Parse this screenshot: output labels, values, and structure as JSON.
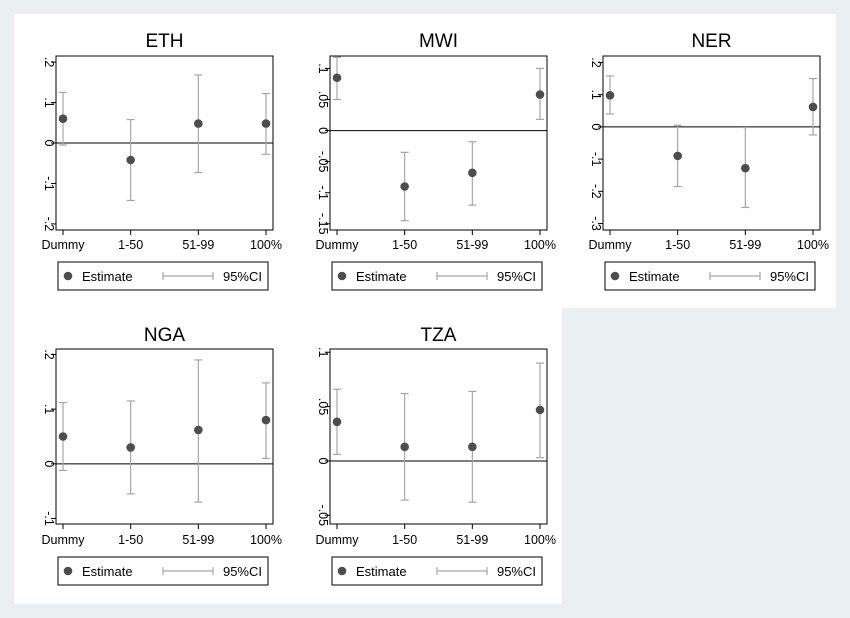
{
  "legend": {
    "estimate_label": "Estimate",
    "ci_label": "95%CI"
  },
  "colors": {
    "dot": "#4d4d4d",
    "ci": "#a6a6a6",
    "background": "#eaf0f2"
  },
  "chart_data": [
    {
      "type": "scatter",
      "title": "ETH",
      "categories": [
        "Dummy",
        "1-50",
        "51-99",
        "100%"
      ],
      "yticks": [
        {
          "v": 0.2,
          "label": ".2"
        },
        {
          "v": 0.1,
          "label": ".1"
        },
        {
          "v": 0,
          "label": "0"
        },
        {
          "v": -0.1,
          "label": "-.1"
        },
        {
          "v": -0.2,
          "label": "-.2"
        }
      ],
      "ylim": [
        -0.215,
        0.215
      ],
      "estimates": [
        0.06,
        -0.042,
        0.048,
        0.048
      ],
      "ci_low": [
        -0.005,
        -0.142,
        -0.073,
        -0.028
      ],
      "ci_high": [
        0.125,
        0.058,
        0.168,
        0.122
      ],
      "legend_position": "bottom"
    },
    {
      "type": "scatter",
      "title": "MWI",
      "categories": [
        "Dummy",
        "1-50",
        "51-99",
        "100%"
      ],
      "yticks": [
        {
          "v": 0.1,
          "label": ".1"
        },
        {
          "v": 0.05,
          "label": ".05"
        },
        {
          "v": 0,
          "label": "0"
        },
        {
          "v": -0.05,
          "label": "-.05"
        },
        {
          "v": -0.1,
          "label": "-.1"
        },
        {
          "v": -0.15,
          "label": "-.15"
        }
      ],
      "ylim": [
        -0.16,
        0.12
      ],
      "estimates": [
        0.085,
        -0.09,
        -0.068,
        0.058
      ],
      "ci_low": [
        0.05,
        -0.145,
        -0.12,
        0.018
      ],
      "ci_high": [
        0.118,
        -0.035,
        -0.018,
        0.1
      ],
      "legend_position": "bottom"
    },
    {
      "type": "scatter",
      "title": "NER",
      "categories": [
        "Dummy",
        "1-50",
        "51-99",
        "100%"
      ],
      "yticks": [
        {
          "v": 0.2,
          "label": ".2"
        },
        {
          "v": 0.1,
          "label": ".1"
        },
        {
          "v": 0,
          "label": "0"
        },
        {
          "v": -0.1,
          "label": "-.1"
        },
        {
          "v": -0.2,
          "label": "-.2"
        },
        {
          "v": -0.3,
          "label": "-.3"
        }
      ],
      "ylim": [
        -0.32,
        0.22
      ],
      "estimates": [
        0.098,
        -0.09,
        -0.128,
        0.062
      ],
      "ci_low": [
        0.04,
        -0.185,
        -0.25,
        -0.025
      ],
      "ci_high": [
        0.158,
        0.005,
        -0.002,
        0.15
      ],
      "legend_position": "bottom"
    },
    {
      "type": "scatter",
      "title": "NGA",
      "categories": [
        "Dummy",
        "1-50",
        "51-99",
        "100%"
      ],
      "yticks": [
        {
          "v": 0.2,
          "label": ".2"
        },
        {
          "v": 0.1,
          "label": ".1"
        },
        {
          "v": 0,
          "label": "0"
        },
        {
          "v": -0.1,
          "label": "-.1"
        }
      ],
      "ylim": [
        -0.11,
        0.21
      ],
      "estimates": [
        0.05,
        0.03,
        0.062,
        0.08
      ],
      "ci_low": [
        -0.012,
        -0.055,
        -0.07,
        0.01
      ],
      "ci_high": [
        0.112,
        0.115,
        0.19,
        0.148
      ],
      "legend_position": "bottom"
    },
    {
      "type": "scatter",
      "title": "TZA",
      "categories": [
        "Dummy",
        "1-50",
        "51-99",
        "100%"
      ],
      "yticks": [
        {
          "v": 0.1,
          "label": ".1"
        },
        {
          "v": 0.05,
          "label": ".05"
        },
        {
          "v": 0,
          "label": "0"
        },
        {
          "v": -0.05,
          "label": "-.05"
        }
      ],
      "ylim": [
        -0.058,
        0.103
      ],
      "estimates": [
        0.036,
        0.013,
        0.013,
        0.047
      ],
      "ci_low": [
        0.006,
        -0.036,
        -0.038,
        0.003
      ],
      "ci_high": [
        0.066,
        0.062,
        0.064,
        0.09
      ],
      "legend_position": "bottom"
    }
  ]
}
